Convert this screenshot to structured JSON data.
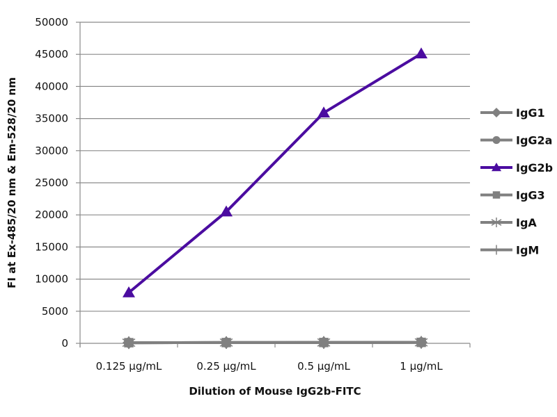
{
  "chart_data": {
    "type": "line",
    "title": "",
    "xlabel": "Dilution of Mouse IgG2b-FITC",
    "ylabel": "FI at Ex-485/20 nm & Em-528/20 nm",
    "categories": [
      "0.125 µg/mL",
      "0.25 µg/mL",
      "0.5 µg/mL",
      "1 µg/mL"
    ],
    "ylim": [
      0,
      50000
    ],
    "yticks": [
      0,
      5000,
      10000,
      15000,
      20000,
      25000,
      30000,
      35000,
      40000,
      45000,
      50000
    ],
    "grid": true,
    "legend_position": "right",
    "series": [
      {
        "name": "IgG1",
        "marker": "diamond",
        "color": "#808080",
        "values": [
          100,
          120,
          130,
          150
        ]
      },
      {
        "name": "IgG2a",
        "marker": "circle",
        "color": "#808080",
        "values": [
          100,
          120,
          130,
          150
        ]
      },
      {
        "name": "IgG2b",
        "marker": "triangle",
        "color": "#4b0ca0",
        "values": [
          7900,
          20500,
          35900,
          45100
        ]
      },
      {
        "name": "IgG3",
        "marker": "square",
        "color": "#808080",
        "values": [
          100,
          120,
          130,
          150
        ]
      },
      {
        "name": "IgA",
        "marker": "star",
        "color": "#808080",
        "values": [
          100,
          120,
          130,
          150
        ]
      },
      {
        "name": "IgM",
        "marker": "plus",
        "color": "#808080",
        "values": [
          100,
          120,
          130,
          150
        ]
      }
    ]
  }
}
